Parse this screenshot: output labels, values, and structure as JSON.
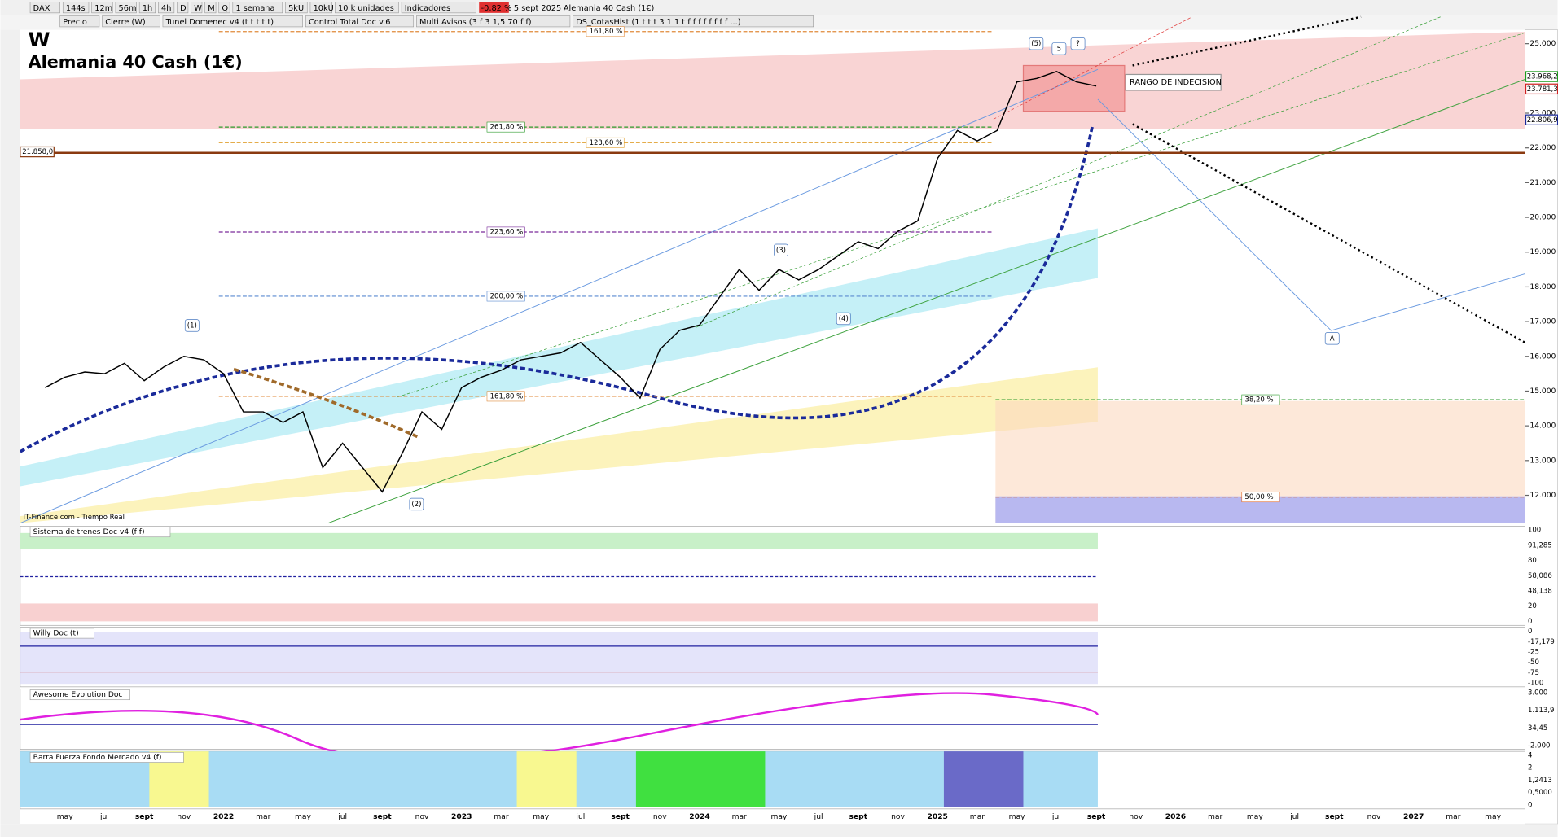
{
  "toolbar": {
    "symbol": "DAX",
    "timeframes": [
      "144s",
      "12m",
      "56m",
      "1h",
      "4h",
      "D",
      "W",
      "M",
      "Q"
    ],
    "period": "1 semana",
    "units": [
      "5kU",
      "10kU"
    ],
    "units_label": "10 k unidades",
    "indicators": "Indicadores",
    "change": "-0,82 %",
    "date": "5 sept 2025",
    "instrument": "Alemania 40 Cash (1€)"
  },
  "indicator_bar": [
    "Precio",
    "Cierre (W)",
    "Tunel Domenec v4 (t t t t t)",
    "Control Total Doc v.6",
    "Multi Avisos (3 f 3 1,5 70 f f)",
    "DS_CotasHist (1 t t t 3 1 1 t f f f f f f f f ...)"
  ],
  "chart": {
    "type": "line",
    "period_letter": "W",
    "title": "Alemania 40 Cash (1€)",
    "source": "IT-Finance.com - Tiempo Real",
    "x": [
      "2021-04",
      "2021-05",
      "2021-06",
      "2021-07",
      "2021-08",
      "2021-09",
      "2021-10",
      "2021-11",
      "2021-12",
      "2022-01",
      "2022-02",
      "2022-03",
      "2022-04",
      "2022-05",
      "2022-06",
      "2022-07",
      "2022-08",
      "2022-09",
      "2022-10",
      "2022-11",
      "2022-12",
      "2023-01",
      "2023-02",
      "2023-03",
      "2023-04",
      "2023-05",
      "2023-06",
      "2023-07",
      "2023-08",
      "2023-09",
      "2023-10",
      "2023-11",
      "2023-12",
      "2024-01",
      "2024-02",
      "2024-03",
      "2024-04",
      "2024-05",
      "2024-06",
      "2024-07",
      "2024-08",
      "2024-09",
      "2024-10",
      "2024-11",
      "2024-12",
      "2025-01",
      "2025-02",
      "2025-03",
      "2025-04",
      "2025-05",
      "2025-06",
      "2025-07",
      "2025-08",
      "2025-09"
    ],
    "values": [
      15100,
      15400,
      15550,
      15500,
      15800,
      15300,
      15700,
      16000,
      15900,
      15500,
      14400,
      14400,
      14100,
      14400,
      12800,
      13500,
      12800,
      12100,
      13200,
      14400,
      13900,
      15100,
      15400,
      15600,
      15900,
      16000,
      16100,
      16400,
      15900,
      15400,
      14800,
      16200,
      16750,
      16900,
      17700,
      18500,
      17900,
      18500,
      18200,
      18500,
      18900,
      19300,
      19100,
      19600,
      19900,
      21700,
      22500,
      22200,
      22500,
      23900,
      24000,
      24200,
      23900,
      23781
    ],
    "color": "#000000",
    "ylim": [
      11200,
      25400
    ],
    "yticks": [
      {
        "value": 25000,
        "label": "25.000"
      },
      {
        "value": 23000,
        "label": "23.000"
      },
      {
        "value": 22000,
        "label": "22.000"
      },
      {
        "value": 21000,
        "label": "21.000"
      },
      {
        "value": 20000,
        "label": "20.000"
      },
      {
        "value": 19000,
        "label": "19.000"
      },
      {
        "value": 18000,
        "label": "18.000"
      },
      {
        "value": 17000,
        "label": "17.000"
      },
      {
        "value": 16000,
        "label": "16.000"
      },
      {
        "value": 15000,
        "label": "15.000"
      },
      {
        "value": 14000,
        "label": "14.000"
      },
      {
        "value": 13000,
        "label": "13.000"
      },
      {
        "value": 12000,
        "label": "12.000"
      }
    ],
    "price_tags": [
      {
        "value": 23968.2,
        "label": "23.968,2",
        "color": "#1a9a1a"
      },
      {
        "value": 23781.3,
        "label": "23.781,3",
        "color": "#d02020"
      },
      {
        "value": 22806.9,
        "label": "22.806,9",
        "color": "#1a2a9a"
      }
    ],
    "level": {
      "value": 21858.0,
      "label": "21.858,0"
    },
    "fibo_labels": [
      {
        "value": 25350,
        "label": "161,80 %",
        "color": "#e08a3a"
      },
      {
        "value": 22600,
        "label": "261,80 %",
        "color": "#2a9a2a"
      },
      {
        "value": 22150,
        "label": "123,60 %",
        "color": "#e0a030"
      },
      {
        "value": 19580,
        "label": "223,60 %",
        "color": "#7a2a9a"
      },
      {
        "value": 17730,
        "label": "200,00 %",
        "color": "#5a8ad0"
      },
      {
        "value": 14850,
        "label": "161,80 %",
        "color": "#e08a3a"
      },
      {
        "value": 14750,
        "label": "38,20 %",
        "color": "#2a9a2a"
      },
      {
        "value": 11950,
        "label": "50,00 %",
        "color": "#e06a2a"
      }
    ],
    "waves": [
      "(1)",
      "(2)",
      "(3)",
      "(4)",
      "(5)",
      "5",
      "?",
      "A"
    ],
    "annotation": "RANGO DE INDECISION",
    "time_axis": [
      "may",
      "jul",
      "sept",
      "nov",
      "2022",
      "mar",
      "may",
      "jul",
      "sept",
      "nov",
      "2023",
      "mar",
      "may",
      "jul",
      "sept",
      "nov",
      "2024",
      "mar",
      "may",
      "jul",
      "sept",
      "nov",
      "2025",
      "mar",
      "may",
      "jul",
      "sept",
      "nov",
      "2026",
      "mar",
      "may",
      "jul",
      "sept",
      "nov",
      "2027",
      "mar",
      "may"
    ]
  },
  "panels": [
    {
      "name": "Sistema de trenes Doc v4 (f f)",
      "labels": [
        "100",
        "91,285",
        "80",
        "58,086",
        "48,138",
        "20",
        "0"
      ]
    },
    {
      "name": "Willy Doc (t)",
      "labels": [
        "0",
        "-17,179",
        "-25",
        "-50",
        "-75",
        "-100"
      ]
    },
    {
      "name": "Awesome Evolution Doc",
      "labels": [
        "3.000",
        "1.113,9",
        "34,45",
        "-2.000"
      ]
    },
    {
      "name": "Barra Fuerza Fondo Mercado v4 (f)",
      "labels": [
        "4",
        "2",
        "1,2413",
        "0,5000",
        "0"
      ]
    }
  ]
}
